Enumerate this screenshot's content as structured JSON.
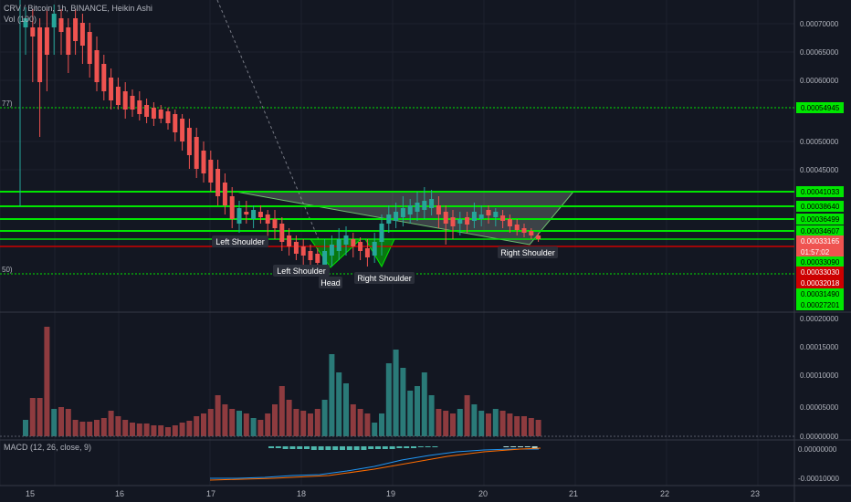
{
  "header": {
    "title": "CRV / Bitcoin, 1h, BINANCE, Heikin Ashi",
    "volume_label": "Vol (100)",
    "left_clip_top": "77)",
    "left_clip_bottom": "50)"
  },
  "main_axis": {
    "ticks": [
      "0.00070000",
      "0.00065000",
      "0.00060000",
      "0.00050000",
      "0.00045000"
    ]
  },
  "price_labels": [
    {
      "text": "0.00054945",
      "price": 0.00054945,
      "bg": "#00e600",
      "fg": "#000000"
    },
    {
      "text": "0.00041033",
      "price": 0.00041033,
      "bg": "#00e600",
      "fg": "#000000"
    },
    {
      "text": "0.00038640",
      "price": 0.0003864,
      "bg": "#00e600",
      "fg": "#000000"
    },
    {
      "text": "0.00036499",
      "price": 0.00036499,
      "bg": "#00e600",
      "fg": "#000000"
    },
    {
      "text": "0.00034607",
      "price": 0.00034607,
      "bg": "#00e600",
      "fg": "#000000"
    },
    {
      "text": "0.00033165",
      "price": 0.00033165,
      "bg": "#ef5350",
      "fg": "#ffffff"
    },
    {
      "text": "01:57:02",
      "price": 0.000325,
      "bg": "#ef5350",
      "fg": "#ffffff"
    },
    {
      "text": "0.00033090",
      "price": 0.0003309,
      "bg": "#00e600",
      "fg": "#000000"
    },
    {
      "text": "0.00033030",
      "price": 0.0003303,
      "bg": "#cc0000",
      "fg": "#ffffff"
    },
    {
      "text": "0.00032018",
      "price": 0.00032018,
      "bg": "#cc0000",
      "fg": "#ffffff"
    },
    {
      "text": "0.00031490",
      "price": 0.0003149,
      "bg": "#00e600",
      "fg": "#000000"
    },
    {
      "text": "0.00027201",
      "price": 0.00027201,
      "bg": "#00e600",
      "fg": "#000000"
    }
  ],
  "volume_axis": {
    "ticks": [
      "0.00020000",
      "0.00015000",
      "0.00010000",
      "0.00005000",
      "0.00000000"
    ]
  },
  "macd": {
    "label": "MACD (12, 26, close, 9)",
    "ticks": [
      "0.00000000",
      "-0.00010000"
    ]
  },
  "time_axis": {
    "labels": [
      "15",
      "16",
      "17",
      "18",
      "19",
      "20",
      "21",
      "22",
      "23"
    ]
  },
  "annotations": [
    {
      "text": "Left Shoulder"
    },
    {
      "text": "Left Shoulder"
    },
    {
      "text": "Head"
    },
    {
      "text": "Right Shoulder"
    },
    {
      "text": "Right Shoulder"
    }
  ],
  "colors": {
    "background": "#131722",
    "up": "#26a69a",
    "down": "#ef5350",
    "up_volume": "#2a7a78",
    "down_volume": "#8e3b3f",
    "level_green": "#00e600",
    "level_red": "#cc0000",
    "macd_line": "#2196f3",
    "signal_line": "#ff6d00"
  }
}
